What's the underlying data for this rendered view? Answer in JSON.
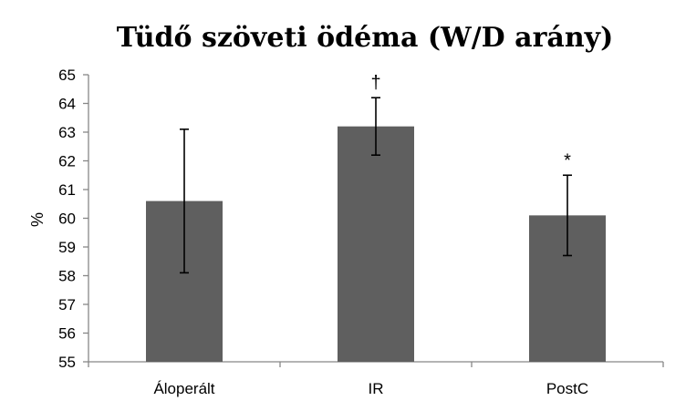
{
  "chart_data": {
    "type": "bar",
    "title": "Tüdő szöveti ödéma (W/D arány)",
    "xlabel": "",
    "ylabel": "%",
    "ylim": [
      55,
      65
    ],
    "yticks": [
      55,
      56,
      57,
      58,
      59,
      60,
      61,
      62,
      63,
      64,
      65
    ],
    "categories": [
      "Áloperált",
      "IR",
      "PostC"
    ],
    "values": [
      60.6,
      63.2,
      60.1
    ],
    "error_upper": [
      63.1,
      64.2,
      61.5
    ],
    "error_lower": [
      58.1,
      62.2,
      58.7
    ],
    "annotations": [
      "",
      "†",
      "*"
    ],
    "grid": false,
    "legend": "none",
    "bar_color": "#5f5f5f"
  }
}
